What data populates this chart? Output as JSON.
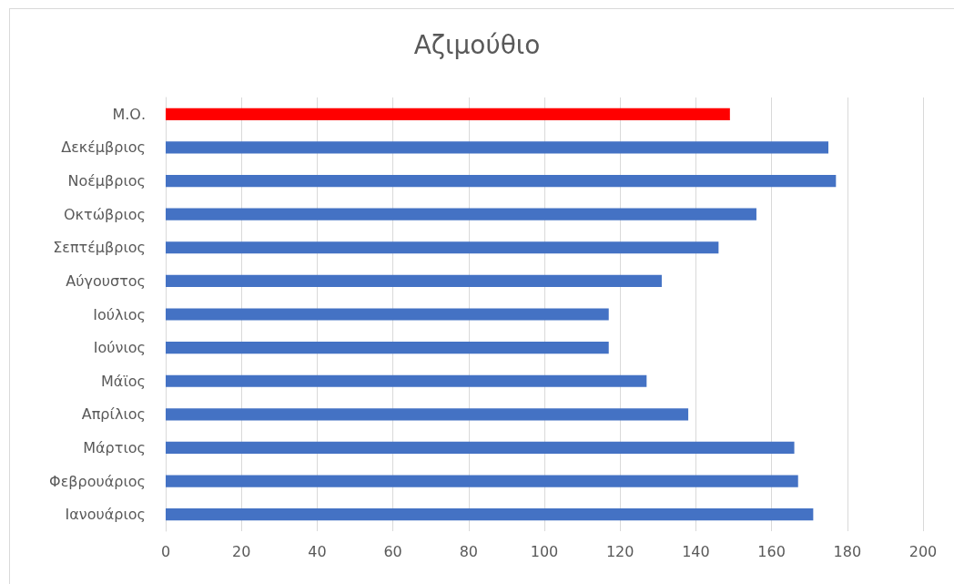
{
  "chart_data": {
    "type": "bar",
    "orientation": "horizontal",
    "title": "Αζιμούθιο",
    "categories": [
      "Μ.Ο.",
      "Δεκέμβριος",
      "Νοέμβριος",
      "Οκτώβριος",
      "Σεπτέμβριος",
      "Αύγουστος",
      "Ιούλιος",
      "Ιούνιος",
      "Μάϊος",
      "Απρίλιος",
      "Μάρτιος",
      "Φεβρουάριος",
      "Ιανουάριος"
    ],
    "values": [
      149,
      175,
      177,
      156,
      146,
      131,
      117,
      117,
      127,
      138,
      166,
      167,
      171
    ],
    "colors": [
      "#ff0000",
      "#4472c4",
      "#4472c4",
      "#4472c4",
      "#4472c4",
      "#4472c4",
      "#4472c4",
      "#4472c4",
      "#4472c4",
      "#4472c4",
      "#4472c4",
      "#4472c4",
      "#4472c4"
    ],
    "xlim": [
      0,
      200
    ],
    "xticks": [
      0,
      20,
      40,
      60,
      80,
      100,
      120,
      140,
      160,
      180,
      200
    ],
    "grid": "x"
  }
}
